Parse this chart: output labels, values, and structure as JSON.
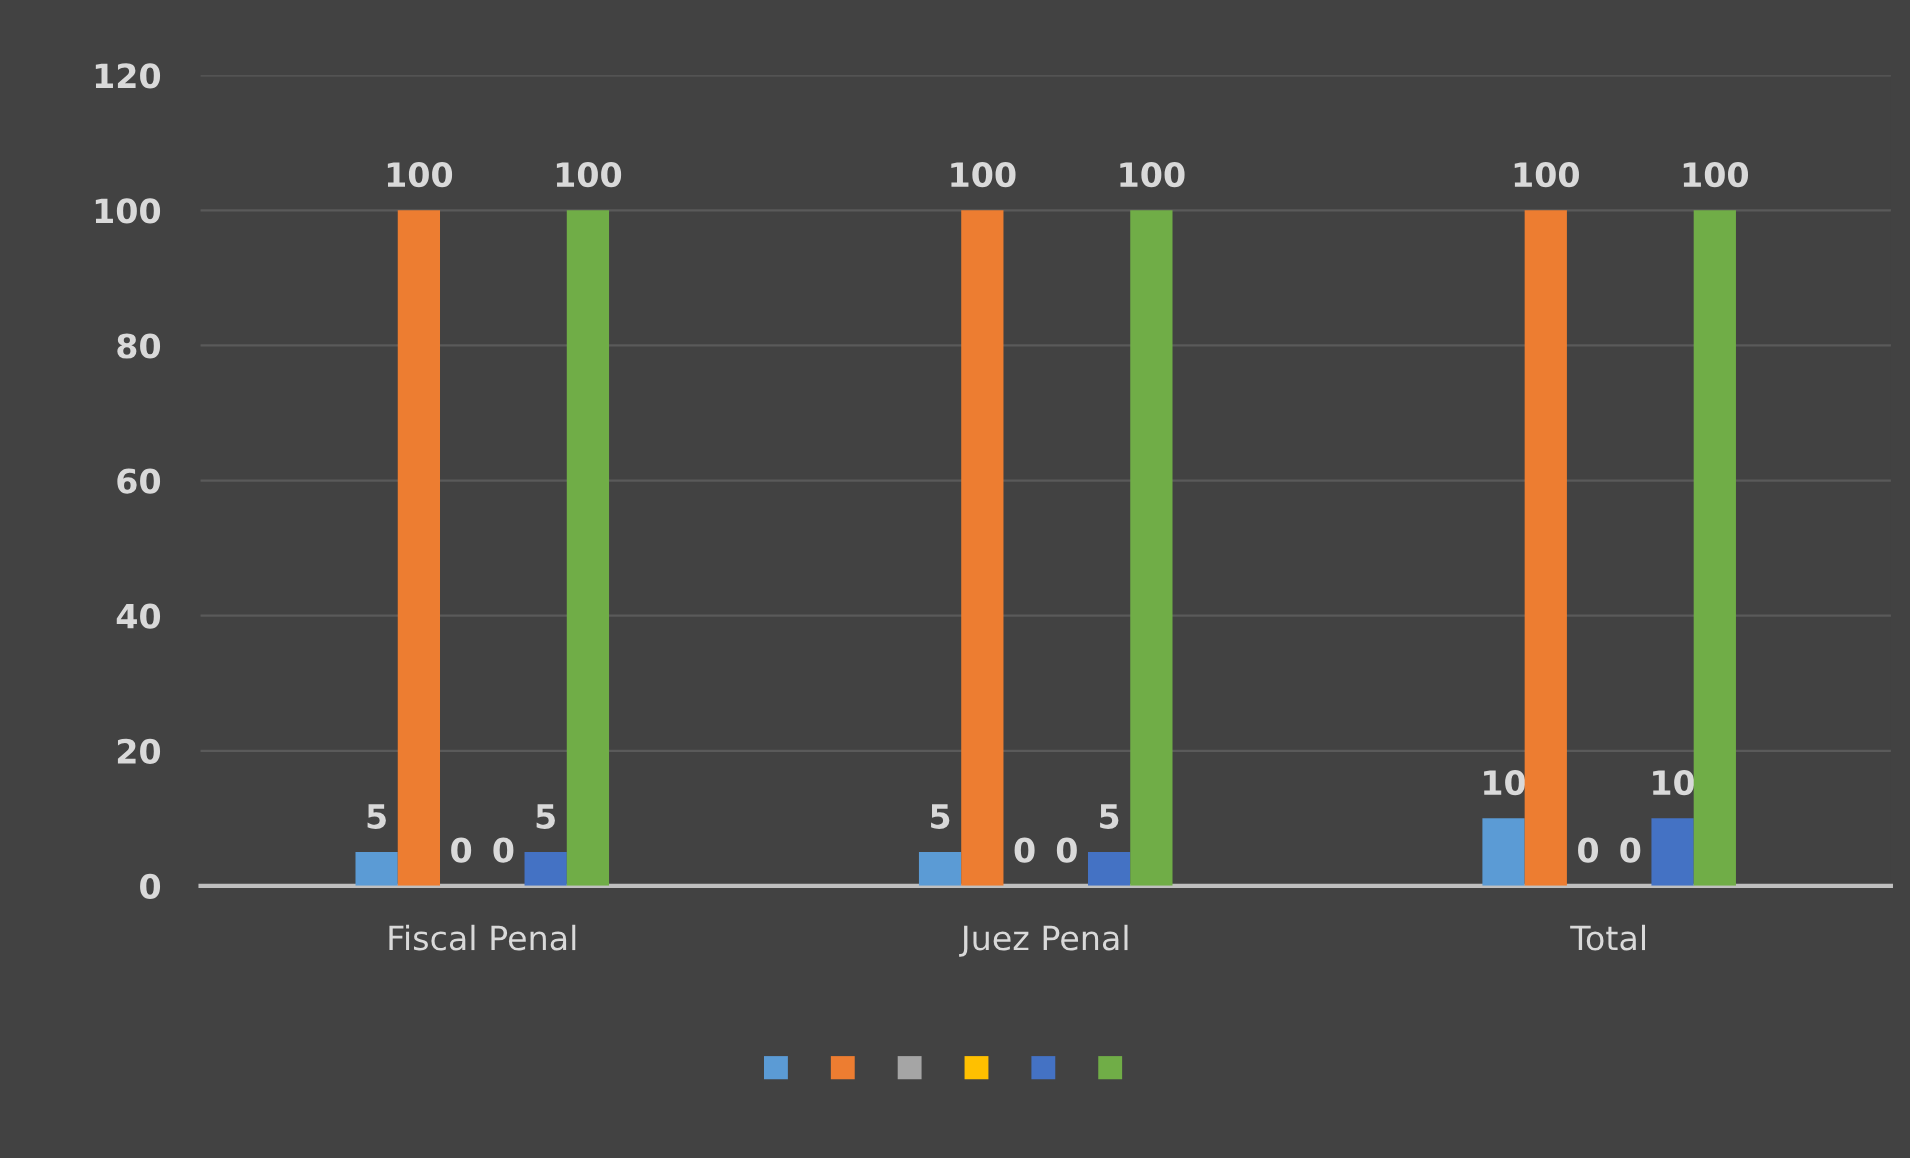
{
  "chart_data": {
    "type": "bar",
    "categories": [
      "Fiscal Penal",
      "Juez Penal",
      "Total"
    ],
    "series": [
      {
        "color": "#5b9bd5",
        "values": [
          5,
          5,
          10
        ]
      },
      {
        "color": "#ed7d31",
        "values": [
          100,
          100,
          100
        ]
      },
      {
        "color": "#a5a5a5",
        "values": [
          0,
          0,
          0
        ]
      },
      {
        "color": "#ffc000",
        "values": [
          0,
          0,
          0
        ]
      },
      {
        "color": "#4472c4",
        "values": [
          5,
          5,
          10
        ]
      },
      {
        "color": "#70ad47",
        "values": [
          100,
          100,
          100
        ]
      }
    ],
    "ylim": [
      0,
      120
    ],
    "yticks": [
      0,
      20,
      40,
      60,
      80,
      100,
      120
    ],
    "grid": "y",
    "data_labels": true
  }
}
